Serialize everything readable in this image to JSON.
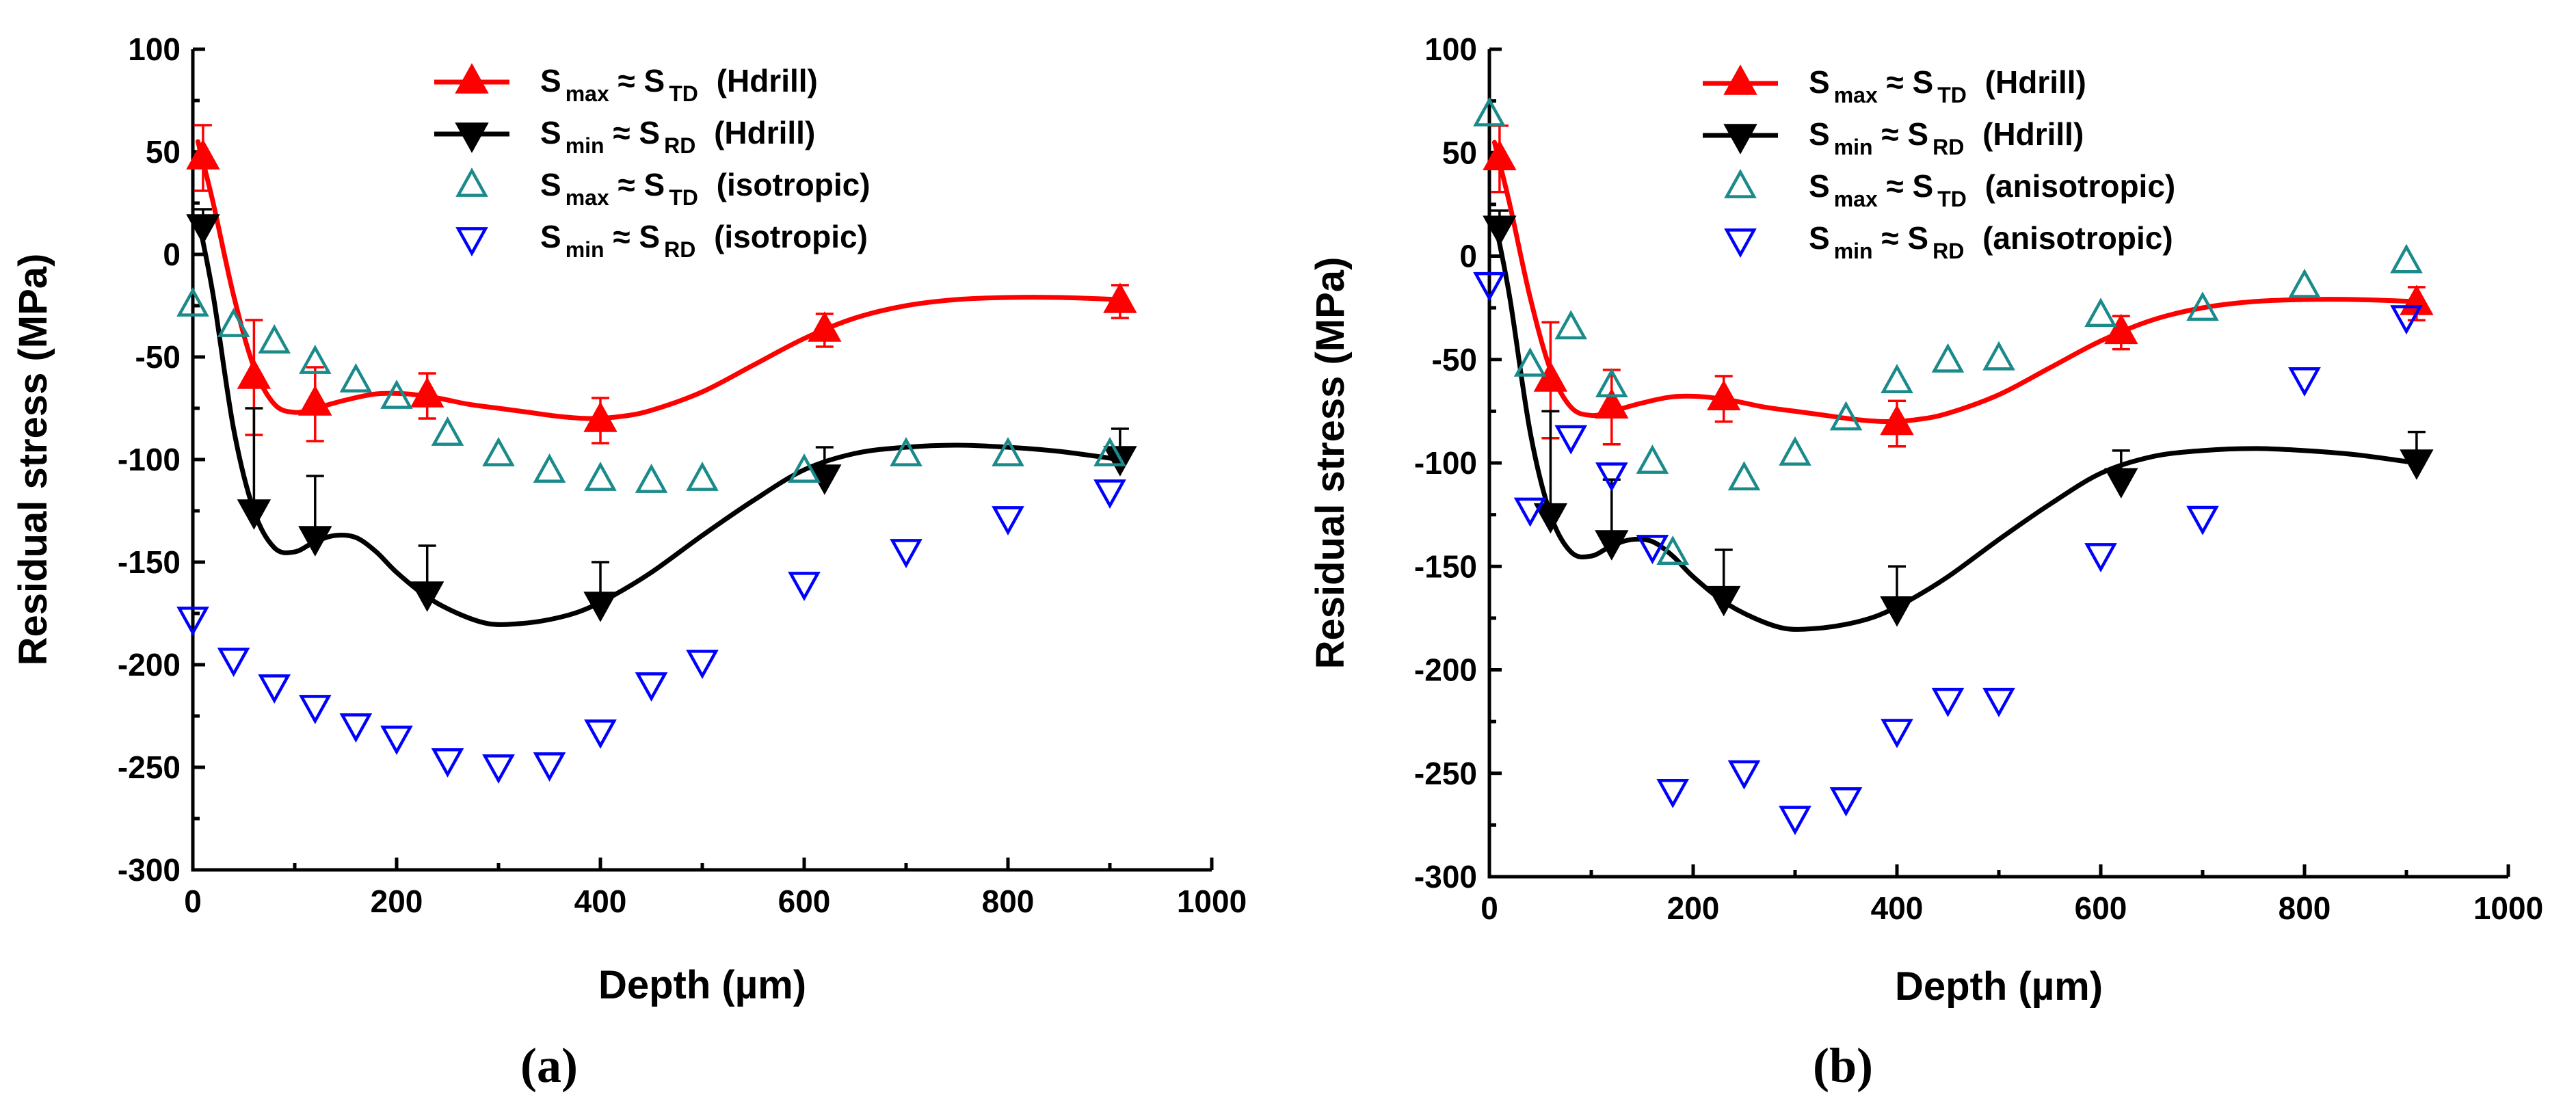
{
  "chart_data": [
    {
      "type": "scatter",
      "panel_label": "(a)",
      "xlabel": "Depth (µm)",
      "ylabel": "Residual stress (MPa)",
      "xlim": [
        0,
        1000
      ],
      "ylim": [
        -300,
        100
      ],
      "xticks": [
        0,
        200,
        400,
        600,
        800,
        1000
      ],
      "yticks": [
        -300,
        -250,
        -200,
        -150,
        -100,
        -50,
        0,
        50,
        100
      ],
      "xtick_labels": [
        "0",
        "200",
        "400",
        "600",
        "800",
        "1000"
      ],
      "ytick_labels": [
        "-300",
        "-250",
        "-200",
        "-150",
        "-100",
        "-50",
        "0",
        "50",
        "100"
      ],
      "legend_position": "top-right",
      "series": [
        {
          "name": "Smax ≈ STD (Hdrill)",
          "legend": {
            "a": "S",
            "a_sub": "max",
            "approx": "≈",
            "b": "S",
            "b_sub": "TD",
            "tail": "(Hdrill)"
          },
          "color": "#ff0000",
          "marker": "triangle-up-filled",
          "x": [
            10,
            60,
            120,
            230,
            400,
            620,
            910
          ],
          "y": [
            47,
            -60,
            -73,
            -69,
            -81,
            -37,
            -23
          ],
          "err": [
            16,
            28,
            18,
            11,
            11,
            8,
            8
          ],
          "curve_x": [
            5,
            20,
            40,
            60,
            80,
            100,
            120,
            150,
            180,
            210,
            240,
            270,
            300,
            330,
            360,
            390,
            420,
            450,
            500,
            550,
            600,
            650,
            700,
            750,
            800,
            850,
            910
          ],
          "curve_y": [
            55,
            25,
            -20,
            -55,
            -73,
            -77,
            -75,
            -71,
            -68,
            -68,
            -70,
            -73,
            -75,
            -77,
            -79,
            -80,
            -79,
            -76,
            -67,
            -54,
            -41,
            -31,
            -25,
            -22,
            -21,
            -21,
            -22
          ]
        },
        {
          "name": "Smin ≈ SRD (Hdrill)",
          "legend": {
            "a": "S",
            "a_sub": "min",
            "approx": "≈",
            "b": "S",
            "b_sub": "RD",
            "tail": "(Hdrill)"
          },
          "color": "#000000",
          "marker": "triangle-down-filled",
          "x": [
            10,
            60,
            120,
            230,
            400,
            620,
            910
          ],
          "y": [
            14,
            -125,
            -138,
            -165,
            -170,
            -108,
            -99
          ],
          "err": [
            8,
            50,
            30,
            23,
            20,
            14,
            14
          ],
          "curve_x": [
            5,
            20,
            40,
            60,
            80,
            100,
            120,
            140,
            160,
            180,
            200,
            230,
            260,
            290,
            320,
            350,
            380,
            410,
            450,
            500,
            550,
            600,
            650,
            700,
            750,
            800,
            850,
            910
          ],
          "curve_y": [
            18,
            -20,
            -85,
            -125,
            -143,
            -145,
            -140,
            -137,
            -138,
            -145,
            -155,
            -167,
            -175,
            -180,
            -180,
            -178,
            -174,
            -167,
            -155,
            -137,
            -120,
            -105,
            -97,
            -94,
            -93,
            -94,
            -96,
            -100
          ]
        },
        {
          "name": "Smax ≈ STD (isotropic)",
          "legend": {
            "a": "S",
            "a_sub": "max",
            "approx": "≈",
            "b": "S",
            "b_sub": "TD",
            "tail": "(isotropic)"
          },
          "color": "#1a8a8a",
          "marker": "triangle-up-open",
          "x": [
            0,
            40,
            80,
            120,
            160,
            200,
            250,
            300,
            350,
            400,
            450,
            500,
            600,
            700,
            800,
            900
          ],
          "y": [
            -25,
            -35,
            -43,
            -53,
            -62,
            -70,
            -88,
            -98,
            -106,
            -110,
            -111,
            -110,
            -106,
            -98,
            -98,
            -98
          ]
        },
        {
          "name": "Smin ≈ SRD (isotropic)",
          "legend": {
            "a": "S",
            "a_sub": "min",
            "approx": "≈",
            "b": "S",
            "b_sub": "RD",
            "tail": "(isotropic)"
          },
          "color": "#0000ff",
          "marker": "triangle-down-open",
          "x": [
            0,
            40,
            80,
            120,
            160,
            200,
            250,
            300,
            350,
            400,
            450,
            500,
            600,
            700,
            800,
            900
          ],
          "y": [
            -177,
            -197,
            -210,
            -220,
            -229,
            -235,
            -246,
            -249,
            -248,
            -232,
            -209,
            -198,
            -160,
            -144,
            -128,
            -115
          ]
        }
      ]
    },
    {
      "type": "scatter",
      "panel_label": "(b)",
      "xlabel": "Depth (µm)",
      "ylabel": "Residual stress (MPa)",
      "xlim": [
        0,
        1000
      ],
      "ylim": [
        -300,
        100
      ],
      "xticks": [
        0,
        200,
        400,
        600,
        800,
        1000
      ],
      "yticks": [
        -300,
        -250,
        -200,
        -150,
        -100,
        -50,
        0,
        50,
        100
      ],
      "xtick_labels": [
        "0",
        "200",
        "400",
        "600",
        "800",
        "1000"
      ],
      "ytick_labels": [
        "-300",
        "-250",
        "-200",
        "-150",
        "-100",
        "-50",
        "0",
        "50",
        "100"
      ],
      "legend_position": "top-right",
      "series": [
        {
          "name": "Smax ≈ STD (Hdrill)",
          "legend": {
            "a": "S",
            "a_sub": "max",
            "approx": "≈",
            "b": "S",
            "b_sub": "TD",
            "tail": "(Hdrill)"
          },
          "color": "#ff0000",
          "marker": "triangle-up-filled",
          "x": [
            10,
            60,
            120,
            230,
            400,
            620,
            910
          ],
          "y": [
            47,
            -60,
            -73,
            -69,
            -81,
            -37,
            -23
          ],
          "err": [
            16,
            28,
            18,
            11,
            11,
            8,
            8
          ],
          "curve_x": [
            5,
            20,
            40,
            60,
            80,
            100,
            120,
            150,
            180,
            210,
            240,
            270,
            300,
            330,
            360,
            390,
            420,
            450,
            500,
            550,
            600,
            650,
            700,
            750,
            800,
            850,
            910
          ],
          "curve_y": [
            55,
            25,
            -20,
            -55,
            -73,
            -77,
            -75,
            -71,
            -68,
            -68,
            -70,
            -73,
            -75,
            -77,
            -79,
            -80,
            -79,
            -76,
            -67,
            -54,
            -41,
            -31,
            -25,
            -22,
            -21,
            -21,
            -22
          ]
        },
        {
          "name": "Smin ≈ SRD (Hdrill)",
          "legend": {
            "a": "S",
            "a_sub": "min",
            "approx": "≈",
            "b": "S",
            "b_sub": "RD",
            "tail": "(Hdrill)"
          },
          "color": "#000000",
          "marker": "triangle-down-filled",
          "x": [
            10,
            60,
            120,
            230,
            400,
            620,
            910
          ],
          "y": [
            14,
            -125,
            -138,
            -165,
            -170,
            -108,
            -99
          ],
          "err": [
            8,
            50,
            30,
            23,
            20,
            14,
            14
          ],
          "curve_x": [
            5,
            20,
            40,
            60,
            80,
            100,
            120,
            140,
            160,
            180,
            200,
            230,
            260,
            290,
            320,
            350,
            380,
            410,
            450,
            500,
            550,
            600,
            650,
            700,
            750,
            800,
            850,
            910
          ],
          "curve_y": [
            18,
            -20,
            -85,
            -125,
            -143,
            -145,
            -140,
            -137,
            -138,
            -145,
            -155,
            -167,
            -175,
            -180,
            -180,
            -178,
            -174,
            -167,
            -155,
            -137,
            -120,
            -105,
            -97,
            -94,
            -93,
            -94,
            -96,
            -100
          ]
        },
        {
          "name": "Smax ≈ STD (anisotropic)",
          "legend": {
            "a": "S",
            "a_sub": "max",
            "approx": "≈",
            "b": "S",
            "b_sub": "TD",
            "tail": "(anisotropic)"
          },
          "color": "#1a8a8a",
          "marker": "triangle-up-open",
          "x": [
            0,
            40,
            80,
            120,
            160,
            180,
            250,
            300,
            350,
            400,
            450,
            500,
            600,
            700,
            800,
            900
          ],
          "y": [
            68,
            -53,
            -35,
            -63,
            -100,
            -144,
            -108,
            -96,
            -79,
            -61,
            -51,
            -50,
            -29,
            -26,
            -15,
            -3
          ]
        },
        {
          "name": "Smin ≈ SRD (anisotropic)",
          "legend": {
            "a": "S",
            "a_sub": "min",
            "approx": "≈",
            "b": "S",
            "b_sub": "RD",
            "tail": "(anisotropic)"
          },
          "color": "#0000ff",
          "marker": "triangle-down-open",
          "x": [
            0,
            40,
            80,
            120,
            160,
            180,
            250,
            300,
            350,
            400,
            450,
            500,
            600,
            700,
            800,
            900
          ],
          "y": [
            -13,
            -122,
            -87,
            -105,
            -140,
            -258,
            -249,
            -271,
            -262,
            -229,
            -214,
            -214,
            -144,
            -126,
            -59,
            -29
          ]
        }
      ]
    }
  ]
}
